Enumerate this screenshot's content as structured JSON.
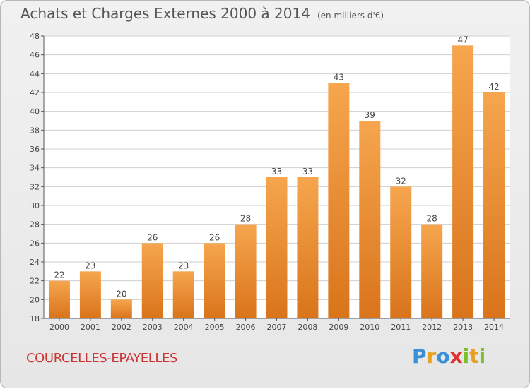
{
  "title": "Achats et Charges Externes 2000 à 2014",
  "title_unit": "(en milliers d'€)",
  "commune": "COURCELLES-EPAYELLES",
  "brand": {
    "text": "Proxiti",
    "letters": [
      {
        "char": "P",
        "color": "#3a8fd6"
      },
      {
        "char": "r",
        "color": "#e8a020"
      },
      {
        "char": "o",
        "color": "#3a8fd6"
      },
      {
        "char": "x",
        "color": "#e03030"
      },
      {
        "char": "i",
        "color": "#7cbf2a"
      },
      {
        "char": "t",
        "color": "#e8a020"
      },
      {
        "char": "i",
        "color": "#7cbf2a"
      }
    ]
  },
  "colors": {
    "bar_light": "#f6a64e",
    "bar_dark": "#d9741b",
    "axis": "#555555",
    "grid": "#cfcfcf"
  },
  "chart_data": {
    "type": "bar",
    "categories": [
      "2000",
      "2001",
      "2002",
      "2003",
      "2004",
      "2005",
      "2006",
      "2007",
      "2008",
      "2009",
      "2010",
      "2011",
      "2012",
      "2013",
      "2014"
    ],
    "values": [
      22,
      23,
      20,
      26,
      23,
      26,
      28,
      33,
      33,
      43,
      39,
      32,
      28,
      47,
      42
    ],
    "ylim": [
      18,
      48
    ],
    "yticks": [
      18,
      20,
      22,
      24,
      26,
      28,
      30,
      32,
      34,
      36,
      38,
      40,
      42,
      44,
      46,
      48
    ],
    "grid": true,
    "data_labels": true
  }
}
